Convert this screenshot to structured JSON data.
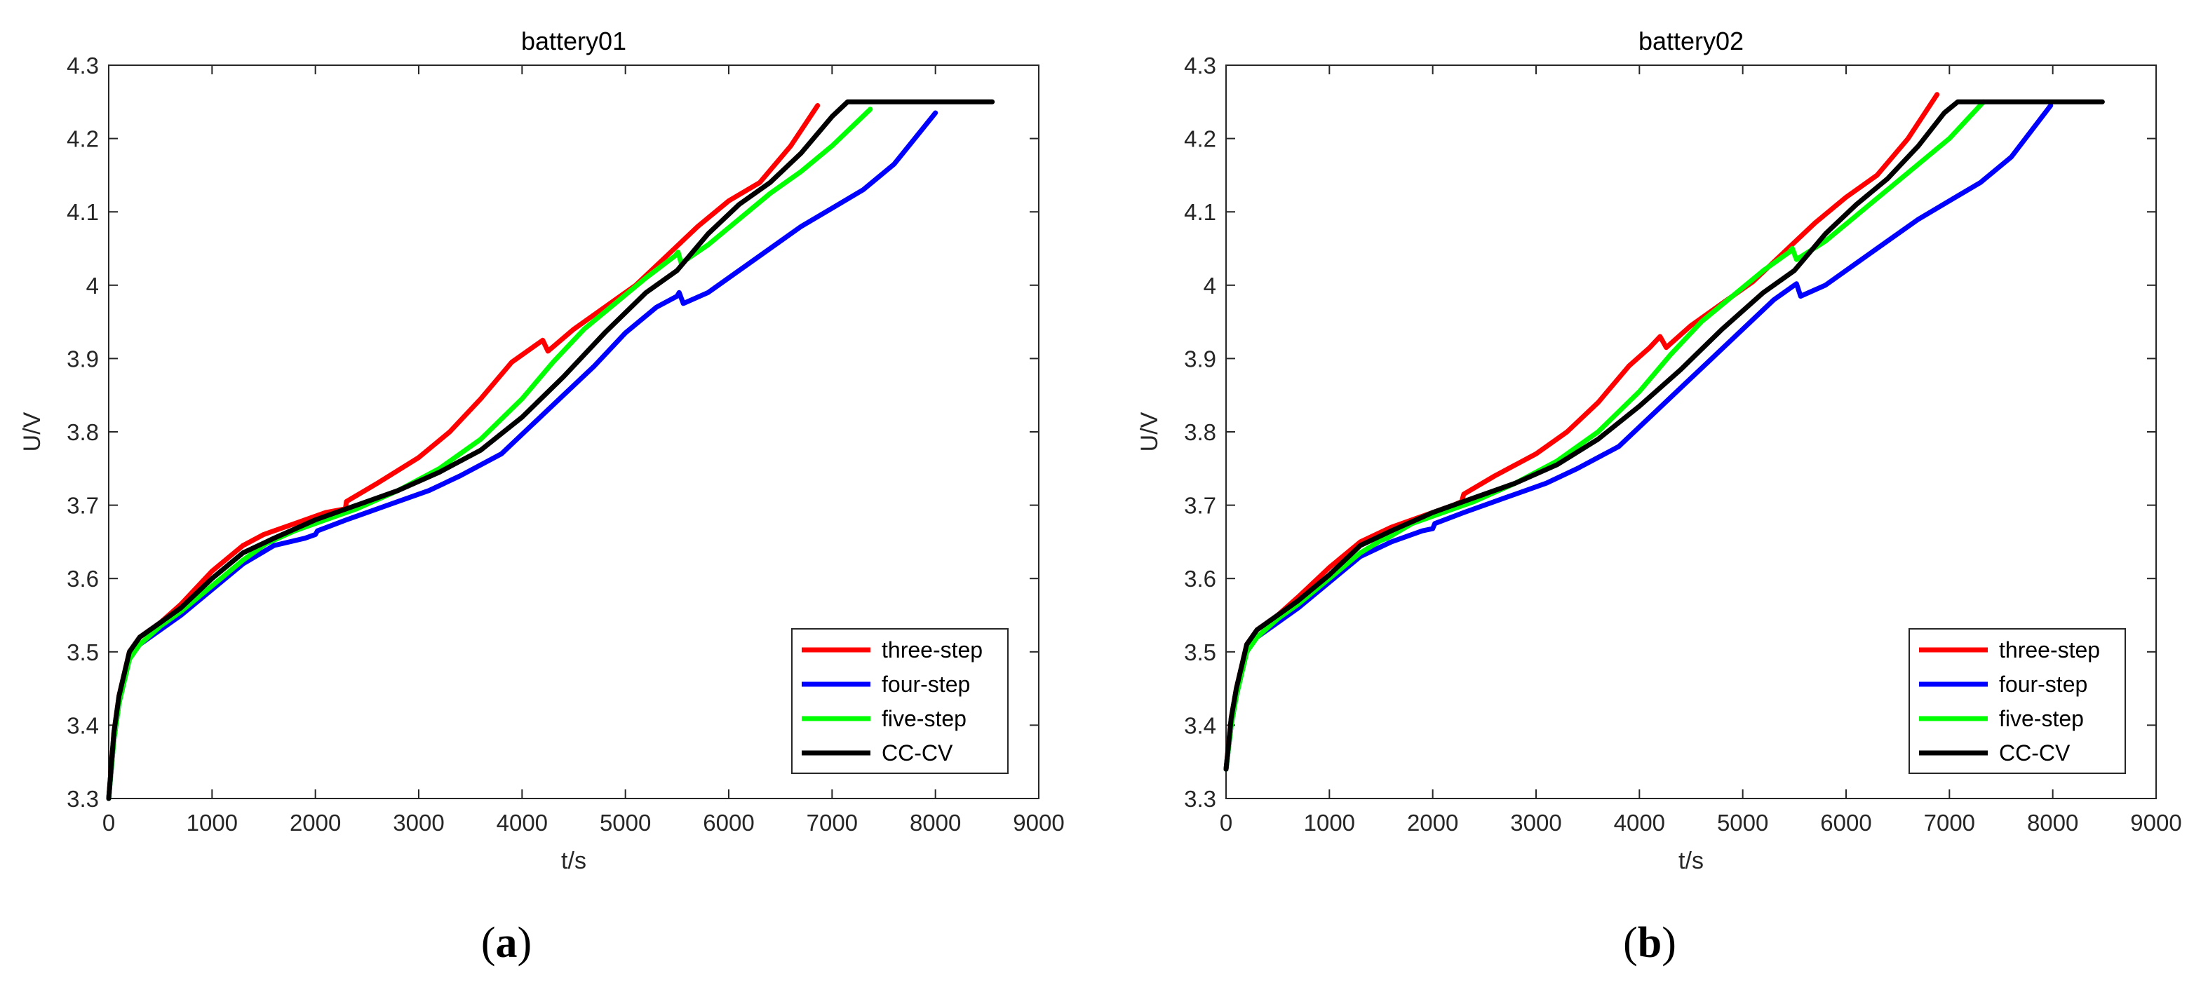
{
  "chart_data": [
    {
      "type": "line",
      "title": "battery01",
      "xlabel": "t/s",
      "ylabel": "U/V",
      "caption_letter": "a",
      "xlim": [
        0,
        9000
      ],
      "ylim": [
        3.3,
        4.3
      ],
      "xticks": [
        0,
        1000,
        2000,
        3000,
        4000,
        5000,
        6000,
        7000,
        8000,
        9000
      ],
      "yticks": [
        3.3,
        3.4,
        3.5,
        3.6,
        3.7,
        3.8,
        3.9,
        4,
        4.1,
        4.2,
        4.3
      ],
      "ytick_labels": [
        "3.3",
        "3.4",
        "3.5",
        "3.6",
        "3.7",
        "3.8",
        "3.9",
        "4",
        "4.1",
        "4.2",
        "4.3"
      ],
      "legend_position": "bottom-right",
      "series": [
        {
          "name": "three-step",
          "color": "#ff0000",
          "x": [
            0,
            50,
            100,
            200,
            300,
            500,
            700,
            1000,
            1300,
            1500,
            1800,
            2100,
            2290,
            2300,
            2600,
            3000,
            3300,
            3600,
            3900,
            4100,
            4200,
            4250,
            4500,
            4800,
            5100,
            5400,
            5700,
            6000,
            6300,
            6600,
            6860
          ],
          "y": [
            3.3,
            3.39,
            3.44,
            3.5,
            3.52,
            3.54,
            3.565,
            3.61,
            3.645,
            3.66,
            3.675,
            3.69,
            3.695,
            3.705,
            3.73,
            3.765,
            3.8,
            3.845,
            3.895,
            3.915,
            3.925,
            3.91,
            3.94,
            3.97,
            4,
            4.04,
            4.08,
            4.115,
            4.14,
            4.19,
            4.245
          ]
        },
        {
          "name": "four-step",
          "color": "#0000ff",
          "x": [
            0,
            50,
            100,
            200,
            300,
            500,
            700,
            1000,
            1300,
            1600,
            1900,
            2000,
            2020,
            2300,
            2700,
            3100,
            3400,
            3800,
            4100,
            4400,
            4700,
            5000,
            5300,
            5500,
            5520,
            5560,
            5800,
            6100,
            6400,
            6700,
            7000,
            7300,
            7600,
            8000
          ],
          "y": [
            3.3,
            3.38,
            3.43,
            3.49,
            3.51,
            3.53,
            3.55,
            3.585,
            3.62,
            3.645,
            3.655,
            3.66,
            3.665,
            3.68,
            3.7,
            3.72,
            3.74,
            3.77,
            3.81,
            3.85,
            3.89,
            3.935,
            3.97,
            3.985,
            3.99,
            3.975,
            3.99,
            4.02,
            4.05,
            4.08,
            4.105,
            4.13,
            4.165,
            4.235
          ]
        },
        {
          "name": "five-step",
          "color": "#00ff00",
          "x": [
            0,
            50,
            100,
            200,
            300,
            500,
            700,
            1000,
            1300,
            1500,
            1530,
            1800,
            2100,
            2400,
            2800,
            3200,
            3600,
            4000,
            4300,
            4600,
            4900,
            5200,
            5480,
            5510,
            5540,
            5800,
            6100,
            6400,
            6700,
            7000,
            7370
          ],
          "y": [
            3.3,
            3.38,
            3.43,
            3.49,
            3.51,
            3.535,
            3.555,
            3.59,
            3.625,
            3.645,
            3.648,
            3.665,
            3.68,
            3.695,
            3.72,
            3.75,
            3.79,
            3.845,
            3.895,
            3.94,
            3.975,
            4.01,
            4.04,
            4.045,
            4.03,
            4.055,
            4.09,
            4.125,
            4.155,
            4.19,
            4.24
          ]
        },
        {
          "name": "CC-CV",
          "color": "#000000",
          "x": [
            0,
            50,
            100,
            200,
            300,
            500,
            700,
            1000,
            1300,
            1600,
            2000,
            2400,
            2800,
            3200,
            3600,
            4000,
            4400,
            4800,
            5200,
            5500,
            5800,
            6100,
            6400,
            6700,
            7000,
            7150,
            7200,
            7500,
            8000,
            8550
          ],
          "y": [
            3.3,
            3.39,
            3.44,
            3.5,
            3.52,
            3.54,
            3.56,
            3.6,
            3.635,
            3.655,
            3.68,
            3.7,
            3.72,
            3.745,
            3.775,
            3.82,
            3.875,
            3.935,
            3.99,
            4.02,
            4.07,
            4.11,
            4.14,
            4.18,
            4.23,
            4.25,
            4.25,
            4.25,
            4.25,
            4.25
          ]
        }
      ]
    },
    {
      "type": "line",
      "title": "battery02",
      "xlabel": "t/s",
      "ylabel": "U/V",
      "caption_letter": "b",
      "xlim": [
        0,
        9000
      ],
      "ylim": [
        3.3,
        4.3
      ],
      "xticks": [
        0,
        1000,
        2000,
        3000,
        4000,
        5000,
        6000,
        7000,
        8000,
        9000
      ],
      "yticks": [
        3.3,
        3.4,
        3.5,
        3.6,
        3.7,
        3.8,
        3.9,
        4,
        4.1,
        4.2,
        4.3
      ],
      "ytick_labels": [
        "3.3",
        "3.4",
        "3.5",
        "3.6",
        "3.7",
        "3.8",
        "3.9",
        "4",
        "4.1",
        "4.2",
        "4.3"
      ],
      "legend_position": "bottom-right",
      "series": [
        {
          "name": "three-step",
          "color": "#ff0000",
          "x": [
            0,
            50,
            100,
            200,
            300,
            500,
            700,
            1000,
            1300,
            1600,
            1900,
            2200,
            2280,
            2300,
            2600,
            3000,
            3300,
            3600,
            3900,
            4100,
            4200,
            4260,
            4500,
            4800,
            5100,
            5400,
            5700,
            6000,
            6300,
            6600,
            6880
          ],
          "y": [
            3.34,
            3.41,
            3.45,
            3.51,
            3.53,
            3.55,
            3.575,
            3.615,
            3.65,
            3.67,
            3.685,
            3.7,
            3.705,
            3.715,
            3.74,
            3.77,
            3.8,
            3.84,
            3.89,
            3.915,
            3.93,
            3.915,
            3.945,
            3.975,
            4.005,
            4.045,
            4.085,
            4.12,
            4.15,
            4.2,
            4.26
          ]
        },
        {
          "name": "four-step",
          "color": "#0000ff",
          "x": [
            0,
            50,
            100,
            200,
            300,
            500,
            700,
            1000,
            1300,
            1600,
            1900,
            2000,
            2020,
            2300,
            2700,
            3100,
            3400,
            3800,
            4100,
            4400,
            4700,
            5000,
            5300,
            5500,
            5520,
            5560,
            5800,
            6100,
            6400,
            6700,
            7000,
            7300,
            7600,
            7980
          ],
          "y": [
            3.34,
            3.4,
            3.44,
            3.5,
            3.52,
            3.54,
            3.56,
            3.595,
            3.63,
            3.65,
            3.665,
            3.668,
            3.675,
            3.69,
            3.71,
            3.73,
            3.75,
            3.78,
            3.82,
            3.86,
            3.9,
            3.94,
            3.98,
            4,
            4.002,
            3.985,
            4,
            4.03,
            4.06,
            4.09,
            4.115,
            4.14,
            4.175,
            4.245
          ]
        },
        {
          "name": "five-step",
          "color": "#00ff00",
          "x": [
            0,
            50,
            100,
            200,
            300,
            500,
            700,
            1000,
            1300,
            1500,
            1560,
            1800,
            2100,
            2400,
            2800,
            3200,
            3600,
            4000,
            4300,
            4600,
            4900,
            5200,
            5450,
            5480,
            5520,
            5800,
            6100,
            6400,
            6700,
            7000,
            7330
          ],
          "y": [
            3.34,
            3.4,
            3.44,
            3.5,
            3.52,
            3.545,
            3.565,
            3.6,
            3.635,
            3.652,
            3.655,
            3.675,
            3.69,
            3.705,
            3.73,
            3.76,
            3.8,
            3.855,
            3.905,
            3.95,
            3.985,
            4.02,
            4.045,
            4.05,
            4.035,
            4.06,
            4.095,
            4.13,
            4.165,
            4.2,
            4.25
          ]
        },
        {
          "name": "CC-CV",
          "color": "#000000",
          "x": [
            0,
            50,
            100,
            200,
            300,
            500,
            700,
            1000,
            1300,
            1600,
            2000,
            2400,
            2800,
            3200,
            3600,
            4000,
            4400,
            4800,
            5200,
            5500,
            5800,
            6100,
            6400,
            6700,
            6950,
            7080,
            7200,
            7600,
            8000,
            8480
          ],
          "y": [
            3.34,
            3.41,
            3.45,
            3.51,
            3.53,
            3.55,
            3.57,
            3.605,
            3.645,
            3.665,
            3.69,
            3.71,
            3.73,
            3.755,
            3.79,
            3.835,
            3.885,
            3.94,
            3.99,
            4.02,
            4.07,
            4.11,
            4.145,
            4.19,
            4.235,
            4.25,
            4.25,
            4.25,
            4.25,
            4.25
          ]
        }
      ]
    }
  ]
}
